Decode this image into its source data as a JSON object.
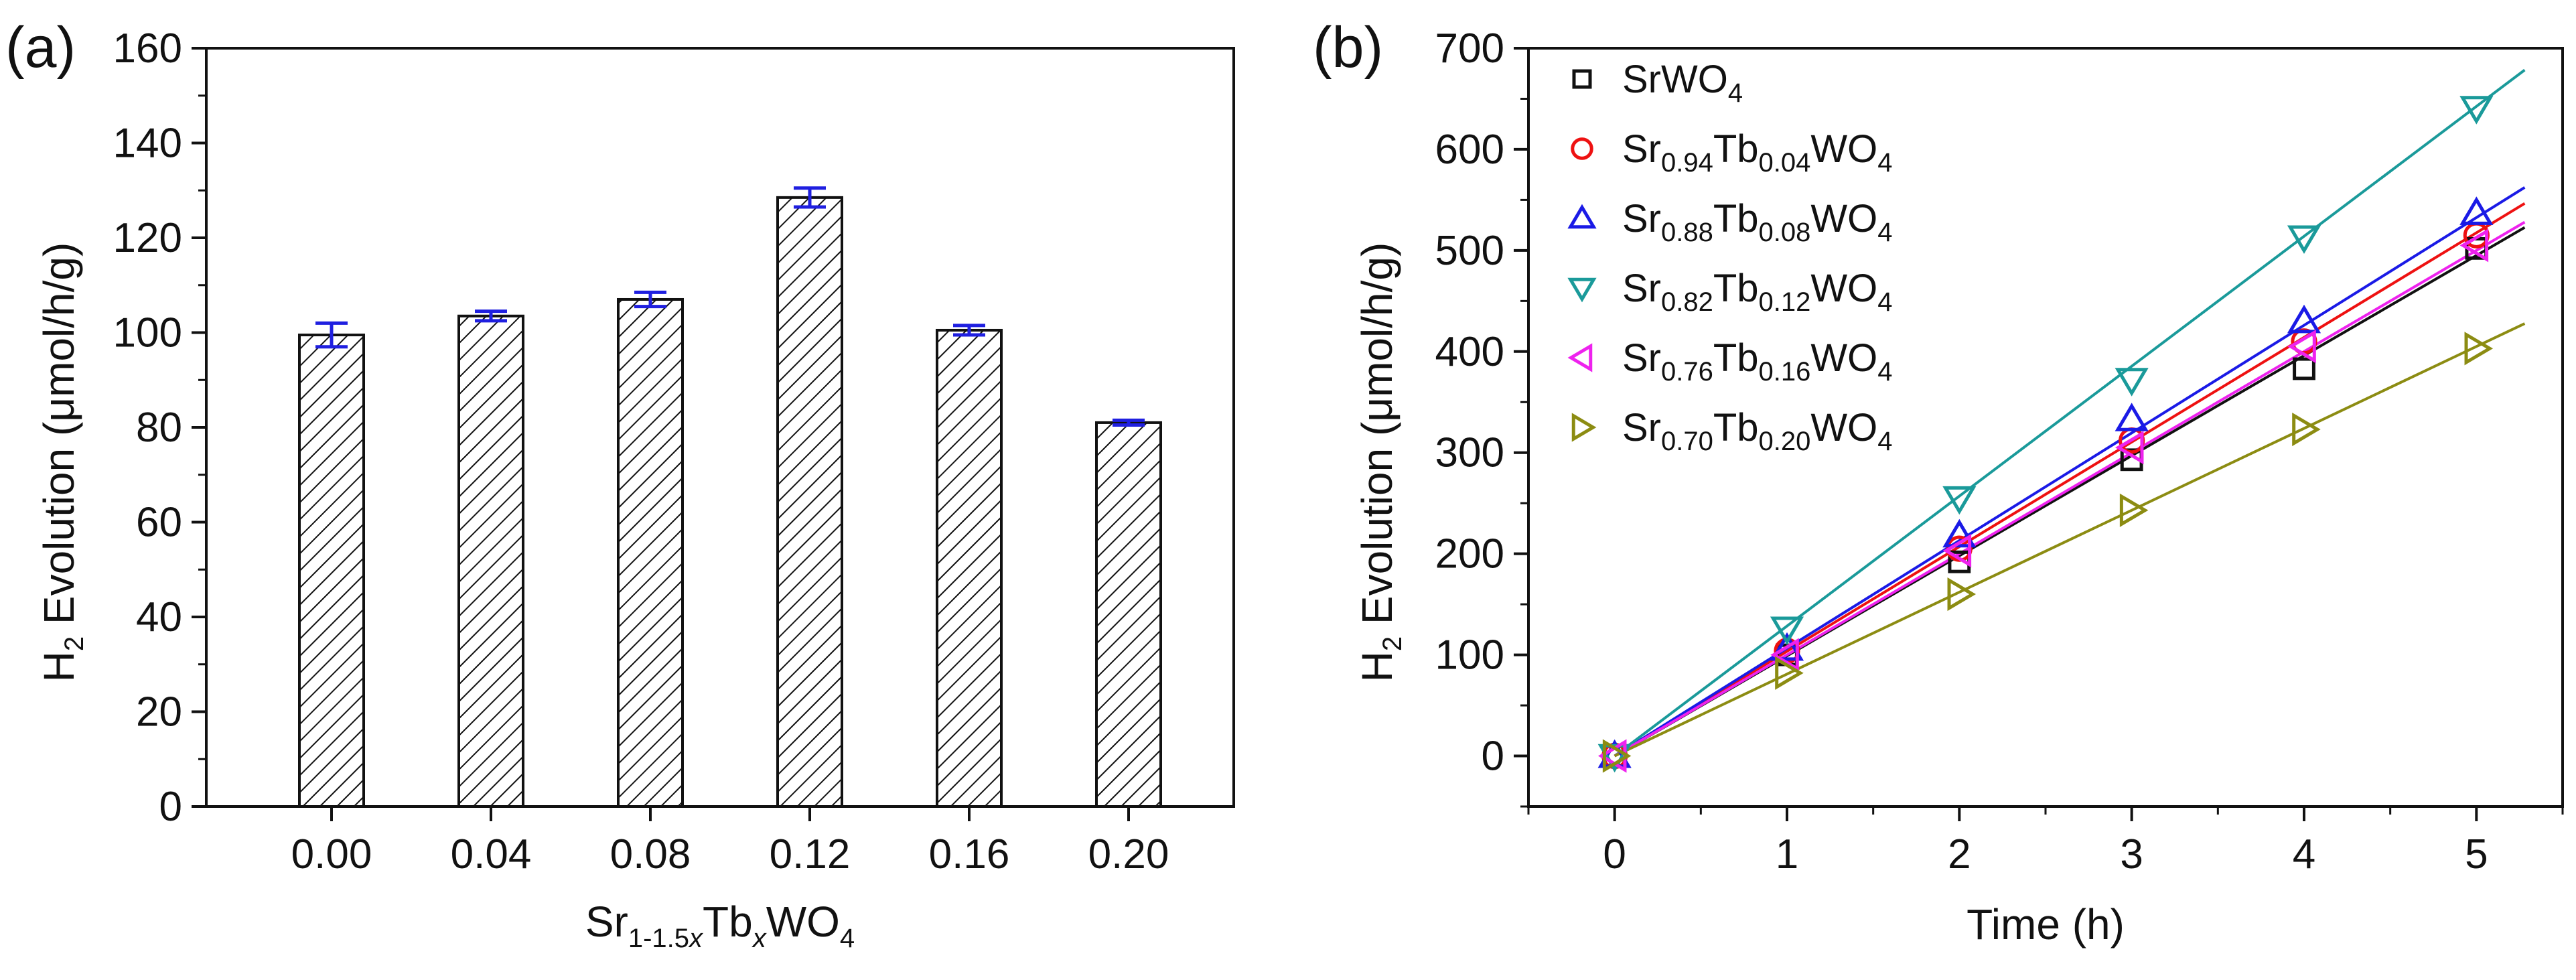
{
  "chart_data": [
    {
      "panel": "(a)",
      "type": "bar",
      "categories": [
        "0.00",
        "0.04",
        "0.08",
        "0.12",
        "0.16",
        "0.20"
      ],
      "values": [
        99.5,
        103.5,
        107,
        128.5,
        100.5,
        81
      ],
      "errors": [
        2.5,
        1,
        1.5,
        2,
        1,
        0.5
      ],
      "ylim": [
        0,
        160
      ],
      "yticks": [
        "0",
        "20",
        "40",
        "60",
        "80",
        "100",
        "120",
        "140",
        "160"
      ],
      "ylabel": {
        "main": "H",
        "sub": "2",
        "rest": " Evolution (μmol/h/g)"
      },
      "xlabel": {
        "p1": "Sr",
        "s1": "1-1.5",
        "s1i": "x",
        "p2": "Tb",
        "s2i": "x",
        "p3": "WO",
        "s3": "4"
      },
      "bar_fill": "hatched",
      "error_color": "#1f1fe0"
    },
    {
      "panel": "(b)",
      "type": "scatter",
      "x": [
        0,
        1,
        2,
        3,
        4,
        5
      ],
      "xlim": [
        -0.5,
        5.5
      ],
      "xticks": [
        "0",
        "1",
        "2",
        "3",
        "4",
        "5"
      ],
      "ylim": [
        -50,
        700
      ],
      "yticks": [
        "0",
        "100",
        "200",
        "300",
        "400",
        "500",
        "600",
        "700"
      ],
      "xlabel": "Time (h)",
      "ylabel": {
        "main": "H",
        "sub": "2",
        "rest": " Evolution (μmol/h/g)"
      },
      "legend_position": "top-left",
      "series": [
        {
          "name": "SrWO4",
          "legend": {
            "p1": "SrWO",
            "s1": "4"
          },
          "marker": "square",
          "color": "#111111",
          "values": [
            0,
            100,
            192,
            293,
            383,
            502
          ],
          "fit_slope": 99
        },
        {
          "name": "Sr0.94Tb0.04WO4",
          "legend": {
            "p1": "Sr",
            "s1": "0.94",
            "p2": "Tb",
            "s2": "0.04",
            "p3": "WO",
            "s3": "4"
          },
          "marker": "circle",
          "color": "#ee1111",
          "values": [
            0,
            104,
            205,
            312,
            410,
            515
          ],
          "fit_slope": 103.5
        },
        {
          "name": "Sr0.88Tb0.08WO4",
          "legend": {
            "p1": "Sr",
            "s1": "0.88",
            "p2": "Tb",
            "s2": "0.08",
            "p3": "WO",
            "s3": "4"
          },
          "marker": "triangle-up",
          "color": "#1a1ae6",
          "values": [
            0,
            106,
            218,
            333,
            430,
            537
          ],
          "fit_slope": 106.5
        },
        {
          "name": "Sr0.82Tb0.12WO4",
          "legend": {
            "p1": "Sr",
            "s1": "0.82",
            "p2": "Tb",
            "s2": "0.12",
            "p3": "WO",
            "s3": "4"
          },
          "marker": "triangle-down",
          "color": "#1a9a9a",
          "values": [
            0,
            126,
            255,
            372,
            513,
            641
          ],
          "fit_slope": 128.5
        },
        {
          "name": "Sr0.76Tb0.16WO4",
          "legend": {
            "p1": "Sr",
            "s1": "0.76",
            "p2": "Tb",
            "s2": "0.16",
            "p3": "WO",
            "s3": "4"
          },
          "marker": "triangle-left",
          "color": "#ee22ee",
          "values": [
            0,
            100,
            203,
            305,
            405,
            505
          ],
          "fit_slope": 100
        },
        {
          "name": "Sr0.70Tb0.20WO4",
          "legend": {
            "p1": "Sr",
            "s1": "0.70",
            "p2": "Tb",
            "s2": "0.20",
            "p3": "WO",
            "s3": "4"
          },
          "marker": "triangle-right",
          "color": "#8c8c12",
          "values": [
            0,
            82,
            160,
            243,
            323,
            403
          ],
          "fit_slope": 81
        }
      ]
    }
  ]
}
